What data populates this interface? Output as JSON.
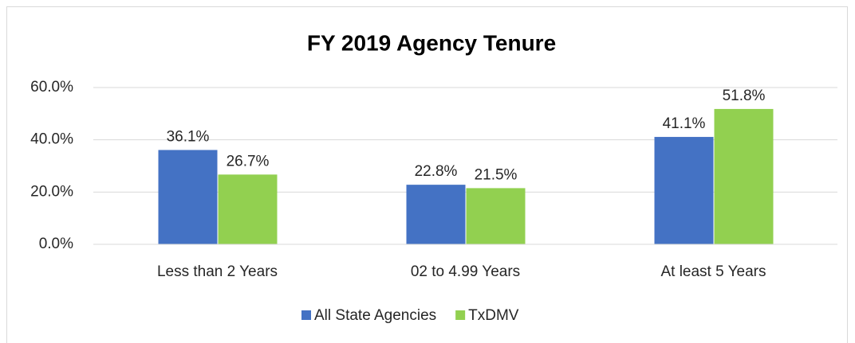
{
  "chart_data": {
    "type": "bar",
    "title": "FY 2019 Agency Tenure",
    "categories": [
      "Less than 2 Years",
      "02 to 4.99 Years",
      "At least 5 Years"
    ],
    "series": [
      {
        "name": "All State Agencies",
        "color": "#4472c4",
        "values": [
          36.1,
          22.8,
          41.1
        ],
        "value_labels": [
          "36.1%",
          "22.8%",
          "41.1%"
        ]
      },
      {
        "name": "TxDMV",
        "color": "#92d050",
        "values": [
          26.7,
          21.5,
          51.8
        ],
        "value_labels": [
          "26.7%",
          "21.5%",
          "51.8%"
        ]
      }
    ],
    "ylim": [
      0,
      60
    ],
    "yticks": [
      {
        "value": 0,
        "label": "0.0%"
      },
      {
        "value": 20,
        "label": "20.0%"
      },
      {
        "value": 40,
        "label": "40.0%"
      },
      {
        "value": 60,
        "label": "60.0%"
      }
    ],
    "grid": true,
    "legend": "bottom"
  }
}
